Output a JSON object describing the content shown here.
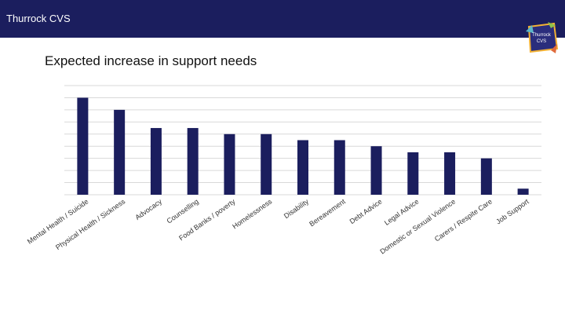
{
  "header": {
    "org_name": "Thurrock CVS",
    "logo_text": "Thurrock CVS",
    "bar_color": "#1b1e5e"
  },
  "chart_data": {
    "type": "bar",
    "title": "Expected increase in support needs",
    "xlabel": "",
    "ylabel": "",
    "categories": [
      "Mental Health / Suicide",
      "Physical Health / Sickness",
      "Advocacy",
      "Counselling",
      "Food Banks / poverty",
      "Homelessness",
      "Disability",
      "Bereavement",
      "Debt Advice",
      "Legal Advice",
      "Domestic or Sexual Violence",
      "Carers / Respite Care",
      "Job Support"
    ],
    "values": [
      16,
      14,
      11,
      11,
      10,
      10,
      9,
      9,
      8,
      7,
      7,
      6,
      1
    ],
    "ylim": [
      0,
      18
    ],
    "grid": true,
    "bar_color": "#1b1e5e",
    "legend": "none"
  }
}
